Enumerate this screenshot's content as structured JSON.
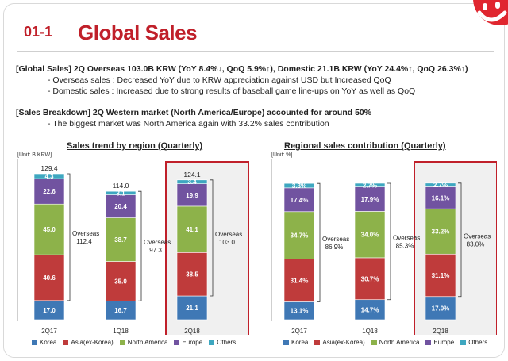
{
  "section": {
    "number": "01-1",
    "title": "Global Sales"
  },
  "summary": {
    "line1": "[Global Sales] 2Q Overseas 103.0B KRW (YoY 8.4%↓, QoQ 5.9%↑), Domestic 21.1B KRW (YoY 24.4%↑, QoQ 26.3%↑)",
    "bullet1": "- Overseas sales : Decreased YoY due to KRW appreciation against USD but Increased QoQ",
    "bullet2": "- Domestic sales : Increased due to strong results of baseball game line-ups on YoY as well as QoQ",
    "line2": "[Sales Breakdown] 2Q Western market (North America/Europe) accounted for around 50%",
    "bullet3": "- The biggest market was North America again with 33.2% sales contribution"
  },
  "colors": {
    "Korea": "#3f78b5",
    "Asia(ex-Korea)": "#bf3b3b",
    "North America": "#8db24a",
    "Europe": "#7153a0",
    "Others": "#3ea7c0",
    "highlight": "#c0202a"
  },
  "chart_data": [
    {
      "type": "bar",
      "stacked": true,
      "title": "Sales trend by region (Quarterly)",
      "unit": "[Unit: B KRW]",
      "categories": [
        "2Q17",
        "1Q18",
        "2Q18"
      ],
      "series": [
        {
          "name": "Korea",
          "values": [
            17.0,
            16.7,
            21.1
          ],
          "labels": [
            "17.0",
            "16.7",
            "21.1"
          ]
        },
        {
          "name": "Asia(ex-Korea)",
          "values": [
            40.6,
            35.0,
            38.5
          ],
          "labels": [
            "40.6",
            "35.0",
            "38.5"
          ]
        },
        {
          "name": "North America",
          "values": [
            45.0,
            38.7,
            41.1
          ],
          "labels": [
            "45.0",
            "38.7",
            "41.1"
          ]
        },
        {
          "name": "Europe",
          "values": [
            22.6,
            20.4,
            19.9
          ],
          "labels": [
            "22.6",
            "20.4",
            "19.9"
          ]
        },
        {
          "name": "Others",
          "values": [
            4.3,
            3.1,
            3.4
          ],
          "labels": [
            "4.3",
            "3.1",
            "3.4"
          ]
        }
      ],
      "totals": [
        "129.4",
        "114.0",
        "124.1"
      ],
      "overseas": {
        "label": "Overseas",
        "values": [
          "112.4",
          "97.3",
          "103.0"
        ]
      },
      "highlighted_category": "2Q18",
      "legend": "bottom"
    },
    {
      "type": "bar",
      "stacked": true,
      "title": "Regional sales contribution (Quarterly)",
      "unit": "[Unit: %]",
      "categories": [
        "2Q17",
        "1Q18",
        "2Q18"
      ],
      "series": [
        {
          "name": "Korea",
          "values": [
            13.1,
            14.7,
            17.0
          ],
          "labels": [
            "13.1%",
            "14.7%",
            "17.0%"
          ]
        },
        {
          "name": "Asia(ex-Korea)",
          "values": [
            31.4,
            30.7,
            31.1
          ],
          "labels": [
            "31.4%",
            "30.7%",
            "31.1%"
          ]
        },
        {
          "name": "North America",
          "values": [
            34.7,
            34.0,
            33.2
          ],
          "labels": [
            "34.7%",
            "34.0%",
            "33.2%"
          ]
        },
        {
          "name": "Europe",
          "values": [
            17.4,
            17.9,
            16.1
          ],
          "labels": [
            "17.4%",
            "17.9%",
            "16.1%"
          ]
        },
        {
          "name": "Others",
          "values": [
            3.3,
            2.7,
            2.7
          ],
          "labels": [
            "3.3%",
            "2.7%",
            "2.7%"
          ]
        }
      ],
      "totals": [],
      "overseas": {
        "label": "Overseas",
        "values": [
          "86.9%",
          "85.3%",
          "83.0%"
        ]
      },
      "highlighted_category": "2Q18",
      "legend": "bottom"
    }
  ]
}
